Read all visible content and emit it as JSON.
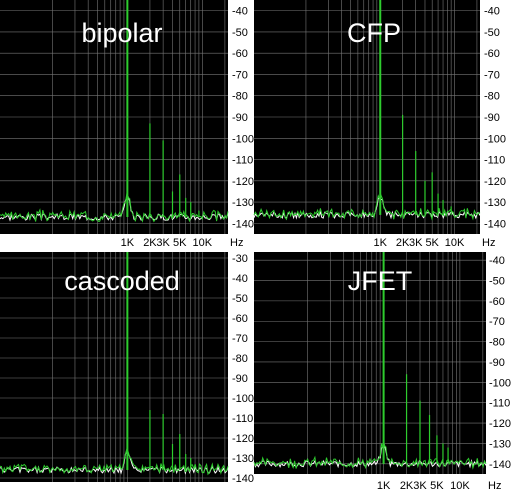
{
  "chart_data": [
    {
      "type": "line",
      "title": "bipolar",
      "x_unit": "Hz",
      "x_ticks": [
        "1K",
        "2K",
        "3K",
        "5K",
        "10K"
      ],
      "y_ticks": [
        -40,
        -50,
        -60,
        -70,
        -80,
        -90,
        -100,
        -110,
        -120,
        -130,
        -140
      ],
      "ylim": [
        -145,
        -35
      ],
      "xlim_hz": [
        20,
        22000
      ],
      "x_scale": "log",
      "grid": true,
      "noise_floor_db": -137,
      "harmonics": [
        {
          "f": 1000,
          "db": -35
        },
        {
          "f": 2000,
          "db": -93
        },
        {
          "f": 3000,
          "db": -101
        },
        {
          "f": 4000,
          "db": -125
        },
        {
          "f": 5000,
          "db": -117
        },
        {
          "f": 6000,
          "db": -128
        },
        {
          "f": 7000,
          "db": -130
        },
        {
          "f": 9000,
          "db": -134
        }
      ],
      "colors": {
        "plot_bg": "#000000",
        "trace": "#2ecc2e",
        "grid": "#777777"
      }
    },
    {
      "type": "line",
      "title": "CFP",
      "x_unit": "Hz",
      "x_ticks": [
        "1K",
        "2K",
        "3K",
        "5K",
        "10K"
      ],
      "y_ticks": [
        -40,
        -50,
        -60,
        -70,
        -80,
        -90,
        -100,
        -110,
        -120,
        -130,
        -140
      ],
      "ylim": [
        -145,
        -35
      ],
      "xlim_hz": [
        20,
        22000
      ],
      "x_scale": "log",
      "grid": true,
      "noise_floor_db": -136,
      "harmonics": [
        {
          "f": 1000,
          "db": -35
        },
        {
          "f": 2000,
          "db": -89
        },
        {
          "f": 3000,
          "db": -106
        },
        {
          "f": 4000,
          "db": -120
        },
        {
          "f": 5000,
          "db": -116
        },
        {
          "f": 6000,
          "db": -126
        },
        {
          "f": 7000,
          "db": -129
        },
        {
          "f": 9000,
          "db": -132
        }
      ],
      "colors": {
        "plot_bg": "#000000",
        "trace": "#2ecc2e",
        "grid": "#777777"
      }
    },
    {
      "type": "line",
      "title": "cascoded",
      "x_unit": "Hz",
      "x_ticks": [],
      "y_ticks": [
        -30,
        -40,
        -50,
        -60,
        -70,
        -80,
        -90,
        -100,
        -110,
        -120,
        -130,
        -140
      ],
      "ylim": [
        -142,
        -27
      ],
      "xlim_hz": [
        20,
        22000
      ],
      "x_scale": "log",
      "grid": true,
      "noise_floor_db": -136,
      "harmonics": [
        {
          "f": 1000,
          "db": -27
        },
        {
          "f": 2000,
          "db": -106
        },
        {
          "f": 3000,
          "db": -108
        },
        {
          "f": 4000,
          "db": -123
        },
        {
          "f": 5000,
          "db": -118
        },
        {
          "f": 6000,
          "db": -128
        },
        {
          "f": 7000,
          "db": -130
        }
      ],
      "colors": {
        "plot_bg": "#000000",
        "trace": "#2ecc2e",
        "grid": "#777777"
      }
    },
    {
      "type": "line",
      "title": "JFET",
      "x_unit": "Hz",
      "x_ticks": [
        "1K",
        "2K",
        "3K",
        "5K",
        "10K"
      ],
      "y_ticks": [
        -40,
        -50,
        -60,
        -70,
        -80,
        -90,
        -100,
        -110,
        -120,
        -130,
        -140
      ],
      "ylim": [
        -145,
        -36
      ],
      "xlim_hz": [
        20,
        22000
      ],
      "x_scale": "log",
      "grid": true,
      "noise_floor_db": -140,
      "harmonics": [
        {
          "f": 1000,
          "db": -36
        },
        {
          "f": 2000,
          "db": -96
        },
        {
          "f": 3000,
          "db": -109
        },
        {
          "f": 4000,
          "db": -116
        },
        {
          "f": 5000,
          "db": -126
        },
        {
          "f": 6000,
          "db": -130
        },
        {
          "f": 7000,
          "db": -132
        }
      ],
      "colors": {
        "plot_bg": "#000000",
        "trace": "#2ecc2e",
        "grid": "#777777"
      }
    }
  ]
}
